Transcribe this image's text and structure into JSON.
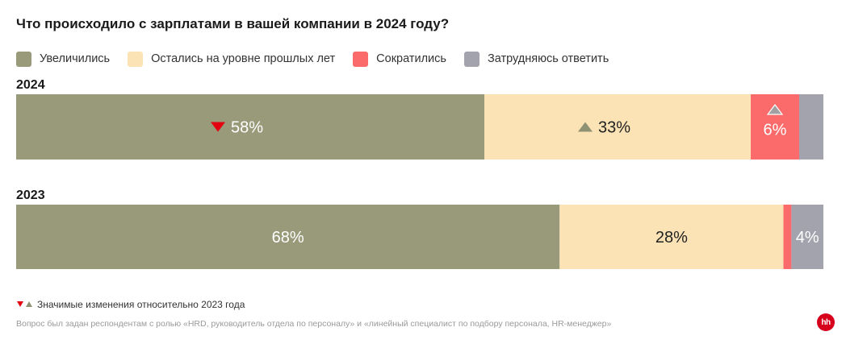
{
  "chart_data": {
    "type": "bar",
    "orientation": "horizontal",
    "stacked": true,
    "normalized": true,
    "title": "Что происходило с зарплатами в вашей компании в 2024 году?",
    "legend_position": "top-left",
    "categories": [
      "2024",
      "2023"
    ],
    "series": [
      {
        "name": "Увеличились",
        "color": "#989a7a",
        "values": [
          58,
          68
        ],
        "labels": [
          "58%",
          "68%"
        ]
      },
      {
        "name": "Остались на уровне прошлых лет",
        "color": "#fbe3b5",
        "values": [
          33,
          28
        ],
        "labels": [
          "33%",
          "28%"
        ]
      },
      {
        "name": "Сократились",
        "color": "#fb6b6b",
        "values": [
          6,
          1
        ],
        "labels": [
          "6%",
          ""
        ]
      },
      {
        "name": "Затрудняюсь ответить",
        "color": "#a3a3ad",
        "values": [
          3,
          4
        ],
        "labels": [
          "",
          "4%"
        ]
      }
    ],
    "significance_markers": [
      {
        "category": "2024",
        "series": "Увеличились",
        "direction": "down"
      },
      {
        "category": "2024",
        "series": "Остались на уровне прошлых лет",
        "direction": "up"
      },
      {
        "category": "2024",
        "series": "Сократились",
        "direction": "up"
      }
    ],
    "xlim": [
      0,
      100
    ],
    "grid": false
  },
  "colors": {
    "marker_down": "#e3000f",
    "marker_up": "#8f9272",
    "marker_up_light": "#a0a0a0",
    "label_dark": "#222222",
    "label_light": "#ffffff",
    "brand": "#d6001c"
  },
  "footnote": {
    "icons": [
      "triangle-down-icon",
      "triangle-up-icon"
    ],
    "text": "Значимые изменения относительно 2023 года"
  },
  "source_note": "Вопрос был задан респондентам с ролью «HRD, руководитель отдела по персоналу» и «линейный специалист по подбору персонала, HR-менеджер»",
  "brand": {
    "logo_text": "hh"
  }
}
